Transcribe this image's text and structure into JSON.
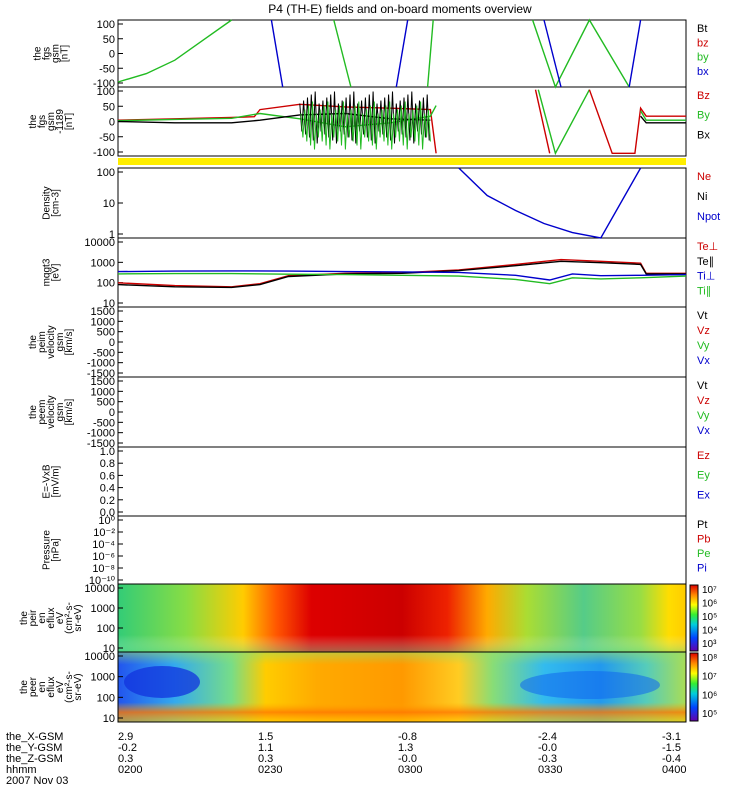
{
  "chart_data": {
    "type": "line",
    "title": "P4 (TH-E) fields and on-board moments overview",
    "date_label": "2007 Nov 03",
    "x_axis": {
      "row_labels": [
        "the_X-GSM",
        "the_Y-GSM",
        "the_Z-GSM",
        "hhmm"
      ],
      "columns": [
        {
          "x": [
            "2.9",
            "-0.2",
            "0.3",
            "0200"
          ]
        },
        {
          "x": [
            "1.5",
            "1.1",
            "0.3",
            "0230"
          ]
        },
        {
          "x": [
            "-0.8",
            "1.3",
            "-0.0",
            "0300"
          ]
        },
        {
          "x": [
            "-2.4",
            "-0.0",
            "-0.3",
            "0330"
          ]
        },
        {
          "x": [
            "-3.1",
            "-1.5",
            "-0.4",
            "0400"
          ]
        }
      ]
    },
    "panels": [
      {
        "id": "fgs",
        "ylabel": [
          "the",
          "fgs",
          "gsm",
          "[nT]"
        ],
        "scale": "linear",
        "yticks": [
          "100",
          "50",
          "0",
          "-50",
          "-100"
        ],
        "legend": [
          {
            "name": "Bt",
            "color": "#000000"
          },
          {
            "name": "bz",
            "color": "#cc0000"
          },
          {
            "name": "by",
            "color": "#22bb22"
          },
          {
            "name": "bx",
            "color": "#0000cc"
          }
        ]
      },
      {
        "id": "fgs_dsl",
        "ylabel": [
          "the",
          "fgs",
          "gsm",
          "-1189",
          "[nT]"
        ],
        "scale": "linear",
        "yticks": [
          "100",
          "50",
          "0",
          "-50",
          "-100"
        ],
        "legend": [
          {
            "name": "Bz",
            "color": "#cc0000"
          },
          {
            "name": "By",
            "color": "#22bb22"
          },
          {
            "name": "Bx",
            "color": "#000000"
          }
        ]
      },
      {
        "id": "density",
        "ylabel": [
          "Density",
          "[cm-3]"
        ],
        "scale": "log",
        "yticks": [
          "100",
          "10",
          "1"
        ],
        "legend": [
          {
            "name": "Ne",
            "color": "#cc0000"
          },
          {
            "name": "Ni",
            "color": "#000000"
          },
          {
            "name": "Npot",
            "color": "#0000cc"
          }
        ]
      },
      {
        "id": "temp",
        "ylabel": [
          "mqgt3",
          "[eV]"
        ],
        "scale": "log",
        "yticks": [
          "10000",
          "1000",
          "100",
          "10"
        ],
        "legend": [
          {
            "name": "Te⊥",
            "color": "#cc0000"
          },
          {
            "name": "Te∥",
            "color": "#000000"
          },
          {
            "name": "Ti⊥",
            "color": "#0000cc"
          },
          {
            "name": "Ti∥",
            "color": "#22bb22"
          }
        ]
      },
      {
        "id": "vi",
        "ylabel": [
          "the",
          "peim",
          "velocity",
          "gsm",
          "[km/s]"
        ],
        "scale": "linear",
        "yticks": [
          "1500",
          "1000",
          "500",
          "0",
          "-500",
          "-1000",
          "-1500"
        ],
        "legend": [
          {
            "name": "Vt",
            "color": "#000000"
          },
          {
            "name": "Vz",
            "color": "#cc0000"
          },
          {
            "name": "Vy",
            "color": "#22bb22"
          },
          {
            "name": "Vx",
            "color": "#0000cc"
          }
        ]
      },
      {
        "id": "ve",
        "ylabel": [
          "the",
          "peem",
          "velocity",
          "gsm",
          "[km/s]"
        ],
        "scale": "linear",
        "yticks": [
          "1500",
          "1000",
          "500",
          "0",
          "-500",
          "-1000",
          "-1500"
        ],
        "legend": [
          {
            "name": "Vt",
            "color": "#000000"
          },
          {
            "name": "Vz",
            "color": "#cc0000"
          },
          {
            "name": "Vy",
            "color": "#22bb22"
          },
          {
            "name": "Vx",
            "color": "#0000cc"
          }
        ]
      },
      {
        "id": "efield",
        "ylabel": [
          "E=-VxB",
          "[mV/m]"
        ],
        "scale": "linear",
        "yticks": [
          "1.0",
          "0.8",
          "0.6",
          "0.4",
          "0.2",
          "0.0"
        ],
        "legend": [
          {
            "name": "Ez",
            "color": "#cc0000"
          },
          {
            "name": "Ey",
            "color": "#22bb22"
          },
          {
            "name": "Ex",
            "color": "#0000cc"
          }
        ]
      },
      {
        "id": "pressure",
        "ylabel": [
          "Pressure",
          "[nPa]"
        ],
        "scale": "log",
        "yticks": [
          "10⁰",
          "10⁻²",
          "10⁻⁴",
          "10⁻⁶",
          "10⁻⁸",
          "10⁻¹⁰"
        ],
        "legend": [
          {
            "name": "Pt",
            "color": "#000000"
          },
          {
            "name": "Pb",
            "color": "#cc0000"
          },
          {
            "name": "Pe",
            "color": "#22bb22"
          },
          {
            "name": "Pi",
            "color": "#0000cc"
          }
        ]
      },
      {
        "id": "ion_spec",
        "ylabel": [
          "the",
          "peir",
          "en",
          "eflux",
          "eV",
          "(cm²-s-",
          "sr-eV)"
        ],
        "scale": "log",
        "yticks": [
          "10000",
          "1000",
          "100",
          "10"
        ],
        "colorbar_ticks": [
          "10⁷",
          "10⁶",
          "10⁵",
          "10⁴",
          "10³"
        ]
      },
      {
        "id": "elec_spec",
        "ylabel": [
          "the",
          "peer",
          "en",
          "eflux",
          "eV",
          "(cm²-s-",
          "sr-eV)"
        ],
        "scale": "log",
        "yticks": [
          "10000",
          "1000",
          "100",
          "10"
        ],
        "colorbar_ticks": [
          "10⁸",
          "10⁷",
          "10⁶",
          "10⁵"
        ]
      }
    ],
    "series": [
      {
        "panel": "fgs",
        "name": "by",
        "color": "#22bb22",
        "points": [
          [
            0.0,
            -85
          ],
          [
            0.05,
            -60
          ],
          [
            0.1,
            -20
          ],
          [
            0.15,
            40
          ],
          [
            0.2,
            100
          ]
        ]
      },
      {
        "panel": "fgs",
        "name": "by",
        "color": "#22bb22",
        "points": [
          [
            0.38,
            100
          ],
          [
            0.41,
            -100
          ]
        ]
      },
      {
        "panel": "fgs",
        "name": "bx",
        "color": "#0000cc",
        "points": [
          [
            0.27,
            100
          ],
          [
            0.29,
            -100
          ]
        ]
      },
      {
        "panel": "fgs",
        "name": "bx",
        "color": "#0000cc",
        "points": [
          [
            0.49,
            -100
          ],
          [
            0.51,
            100
          ]
        ]
      },
      {
        "panel": "fgs",
        "name": "by",
        "color": "#22bb22",
        "points": [
          [
            0.545,
            -100
          ],
          [
            0.555,
            100
          ]
        ]
      },
      {
        "panel": "fgs",
        "name": "by",
        "color": "#22bb22",
        "points": [
          [
            0.73,
            100
          ],
          [
            0.77,
            -100
          ],
          [
            0.83,
            100
          ],
          [
            0.9,
            -100
          ]
        ]
      },
      {
        "panel": "fgs",
        "name": "bx",
        "color": "#0000cc",
        "points": [
          [
            0.75,
            100
          ],
          [
            0.78,
            -100
          ]
        ]
      },
      {
        "panel": "fgs",
        "name": "bx",
        "color": "#0000cc",
        "points": [
          [
            0.9,
            -100
          ],
          [
            0.92,
            100
          ]
        ]
      },
      {
        "panel": "fgs_dsl",
        "name": "Bz",
        "color": "#cc0000",
        "points": [
          [
            0.0,
            5
          ],
          [
            0.1,
            10
          ],
          [
            0.2,
            15
          ],
          [
            0.24,
            18
          ],
          [
            0.25,
            45
          ],
          [
            0.32,
            65
          ],
          [
            0.4,
            55
          ],
          [
            0.48,
            50
          ],
          [
            0.55,
            45
          ],
          [
            0.56,
            -120
          ]
        ]
      },
      {
        "panel": "fgs_dsl",
        "name": "By",
        "color": "#22bb22",
        "points": [
          [
            0.0,
            3
          ],
          [
            0.1,
            8
          ],
          [
            0.2,
            12
          ],
          [
            0.25,
            30
          ],
          [
            0.32,
            10
          ],
          [
            0.4,
            -20
          ],
          [
            0.48,
            -5
          ],
          [
            0.55,
            20
          ],
          [
            0.56,
            60
          ]
        ]
      },
      {
        "panel": "fgs_dsl",
        "name": "Bx",
        "color": "#000000",
        "points": [
          [
            0.0,
            0
          ],
          [
            0.1,
            -5
          ],
          [
            0.2,
            -5
          ],
          [
            0.25,
            5
          ],
          [
            0.32,
            25
          ],
          [
            0.4,
            30
          ],
          [
            0.48,
            10
          ],
          [
            0.55,
            5
          ]
        ]
      },
      {
        "panel": "fgs_dsl",
        "name": "Bz",
        "color": "#cc0000",
        "points": [
          [
            0.735,
            120
          ],
          [
            0.76,
            -120
          ]
        ]
      },
      {
        "panel": "fgs_dsl",
        "name": "By",
        "color": "#22bb22",
        "points": [
          [
            0.74,
            120
          ],
          [
            0.77,
            -120
          ],
          [
            0.83,
            120
          ]
        ]
      },
      {
        "panel": "fgs_dsl",
        "name": "Bz",
        "color": "#cc0000",
        "points": [
          [
            0.83,
            120
          ],
          [
            0.87,
            -120
          ],
          [
            0.91,
            -120
          ],
          [
            0.92,
            50
          ],
          [
            0.93,
            20
          ],
          [
            1.0,
            20
          ]
        ]
      },
      {
        "panel": "fgs_dsl",
        "name": "By",
        "color": "#22bb22",
        "points": [
          [
            0.92,
            40
          ],
          [
            0.93,
            5
          ],
          [
            1.0,
            5
          ]
        ]
      },
      {
        "panel": "fgs_dsl",
        "name": "Bx",
        "color": "#000000",
        "points": [
          [
            0.92,
            20
          ],
          [
            0.93,
            -5
          ],
          [
            1.0,
            -5
          ]
        ]
      },
      {
        "panel": "density",
        "name": "Npot",
        "color": "#0000cc",
        "points": [
          [
            0.6,
            200
          ],
          [
            0.65,
            25
          ],
          [
            0.7,
            8
          ],
          [
            0.75,
            3
          ],
          [
            0.8,
            1.5
          ],
          [
            0.85,
            1.0
          ],
          [
            0.92,
            200
          ]
        ]
      },
      {
        "panel": "temp",
        "name": "Te⊥",
        "color": "#cc0000",
        "points": [
          [
            0.0,
            120
          ],
          [
            0.1,
            90
          ],
          [
            0.2,
            80
          ],
          [
            0.25,
            110
          ],
          [
            0.3,
            250
          ],
          [
            0.4,
            320
          ],
          [
            0.5,
            340
          ],
          [
            0.6,
            450
          ],
          [
            0.7,
            800
          ],
          [
            0.78,
            1300
          ],
          [
            0.85,
            1100
          ],
          [
            0.92,
            900
          ],
          [
            0.93,
            320
          ],
          [
            1.0,
            320
          ]
        ]
      },
      {
        "panel": "temp",
        "name": "Te∥",
        "color": "#000000",
        "points": [
          [
            0.0,
            100
          ],
          [
            0.1,
            80
          ],
          [
            0.2,
            75
          ],
          [
            0.25,
            100
          ],
          [
            0.3,
            230
          ],
          [
            0.4,
            300
          ],
          [
            0.5,
            320
          ],
          [
            0.6,
            420
          ],
          [
            0.7,
            700
          ],
          [
            0.78,
            1100
          ],
          [
            0.85,
            950
          ],
          [
            0.92,
            800
          ],
          [
            0.93,
            300
          ],
          [
            1.0,
            300
          ]
        ]
      },
      {
        "panel": "temp",
        "name": "Ti⊥",
        "color": "#0000cc",
        "points": [
          [
            0.0,
            380
          ],
          [
            0.1,
            400
          ],
          [
            0.2,
            410
          ],
          [
            0.3,
            400
          ],
          [
            0.4,
            380
          ],
          [
            0.5,
            370
          ],
          [
            0.6,
            350
          ],
          [
            0.7,
            260
          ],
          [
            0.76,
            160
          ],
          [
            0.8,
            300
          ],
          [
            0.85,
            250
          ],
          [
            0.92,
            260
          ],
          [
            1.0,
            280
          ]
        ]
      },
      {
        "panel": "temp",
        "name": "Ti∥",
        "color": "#22bb22",
        "points": [
          [
            0.0,
            300
          ],
          [
            0.1,
            310
          ],
          [
            0.2,
            310
          ],
          [
            0.3,
            290
          ],
          [
            0.4,
            280
          ],
          [
            0.5,
            260
          ],
          [
            0.6,
            240
          ],
          [
            0.7,
            170
          ],
          [
            0.76,
            110
          ],
          [
            0.8,
            200
          ],
          [
            0.85,
            180
          ],
          [
            0.92,
            200
          ],
          [
            1.0,
            240
          ]
        ]
      }
    ]
  }
}
